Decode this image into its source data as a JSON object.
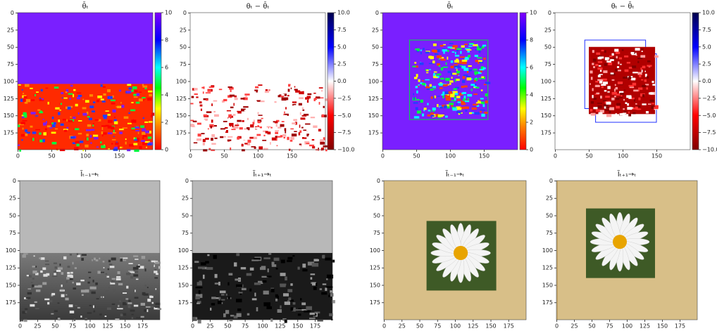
{
  "chart_data": [
    {
      "type": "image",
      "title": "θ̄ₜ",
      "xlim": [
        -0.5,
        199.5
      ],
      "ylim": [
        199.5,
        -0.5
      ],
      "xticks": [
        0,
        50,
        100,
        150
      ],
      "yticks": [
        0,
        25,
        50,
        75,
        100,
        125,
        150,
        175
      ],
      "colorbar": {
        "cmap": "hsv",
        "clim": [
          0,
          10
        ],
        "ticks": [
          0,
          2,
          4,
          6,
          8,
          10
        ]
      }
    },
    {
      "type": "image",
      "title": "θₜ − θ̄ₜ",
      "xlim": [
        -0.5,
        199.5
      ],
      "ylim": [
        199.5,
        -0.5
      ],
      "xticks": [
        0,
        50,
        100,
        150
      ],
      "yticks": [
        0,
        25,
        50,
        75,
        100,
        125,
        150,
        175
      ],
      "colorbar": {
        "cmap": "seismic_r",
        "clim": [
          -10,
          10
        ],
        "ticks": [
          {
            "value": 10,
            "label": "10.0"
          },
          {
            "value": 7.5,
            "label": "7.5"
          },
          {
            "value": 5,
            "label": "5.0"
          },
          {
            "value": 2.5,
            "label": "2.5"
          },
          {
            "value": 0,
            "label": "0.0"
          },
          {
            "value": -2.5,
            "label": "−2.5"
          },
          {
            "value": -5,
            "label": "−5.0"
          },
          {
            "value": -7.5,
            "label": "−7.5"
          },
          {
            "value": -10,
            "label": "−10.0"
          }
        ]
      }
    },
    {
      "type": "image",
      "title": "θ̄ₜ",
      "xlim": [
        -0.5,
        199.5
      ],
      "ylim": [
        199.5,
        -0.5
      ],
      "xticks": [
        0,
        50,
        100,
        150
      ],
      "yticks": [
        0,
        25,
        50,
        75,
        100,
        125,
        150,
        175
      ],
      "colorbar": {
        "cmap": "hsv",
        "clim": [
          0,
          10
        ],
        "ticks": [
          0,
          2,
          4,
          6,
          8,
          10
        ]
      }
    },
    {
      "type": "image",
      "title": "θₜ − θ̄ₜ",
      "xlim": [
        -0.5,
        199.5
      ],
      "ylim": [
        199.5,
        -0.5
      ],
      "xticks": [
        0,
        50,
        100,
        150
      ],
      "yticks": [
        0,
        25,
        50,
        75,
        100,
        125,
        150,
        175
      ],
      "colorbar": {
        "cmap": "seismic_r",
        "clim": [
          -10,
          10
        ],
        "ticks": [
          {
            "value": 10,
            "label": "10.0"
          },
          {
            "value": 7.5,
            "label": "7.5"
          },
          {
            "value": 5,
            "label": "5.0"
          },
          {
            "value": 2.5,
            "label": "2.5"
          },
          {
            "value": 0,
            "label": "0.0"
          },
          {
            "value": -2.5,
            "label": "−2.5"
          },
          {
            "value": -5,
            "label": "−5.0"
          },
          {
            "value": -7.5,
            "label": "−7.5"
          },
          {
            "value": -10,
            "label": "−10.0"
          }
        ]
      }
    },
    {
      "type": "image",
      "title": "Ĩₜ₋₁→ₜ",
      "xlim": [
        -0.5,
        199.5
      ],
      "ylim": [
        199.5,
        -0.5
      ],
      "xticks": [
        0,
        25,
        50,
        75,
        100,
        125,
        150,
        175
      ],
      "yticks": [
        0,
        25,
        50,
        75,
        100,
        125,
        150,
        175
      ]
    },
    {
      "type": "image",
      "title": "Ĩₜ₊₁→ₜ",
      "xlim": [
        -0.5,
        199.5
      ],
      "ylim": [
        199.5,
        -0.5
      ],
      "xticks": [
        0,
        25,
        50,
        75,
        100,
        125,
        150,
        175
      ],
      "yticks": [
        0,
        25,
        50,
        75,
        100,
        125,
        150,
        175
      ]
    },
    {
      "type": "image",
      "title": "Ĩₜ₋₁→ₜ",
      "xlim": [
        -0.5,
        199.5
      ],
      "ylim": [
        199.5,
        -0.5
      ],
      "xticks": [
        0,
        25,
        50,
        75,
        100,
        125,
        150,
        175
      ],
      "yticks": [
        0,
        25,
        50,
        75,
        100,
        125,
        150,
        175
      ]
    },
    {
      "type": "image",
      "title": "Ĩₜ₊₁→ₜ",
      "xlim": [
        -0.5,
        199.5
      ],
      "ylim": [
        199.5,
        -0.5
      ],
      "xticks": [
        0,
        25,
        50,
        75,
        100,
        125,
        150,
        175
      ],
      "yticks": [
        0,
        25,
        50,
        75,
        100,
        125,
        150,
        175
      ]
    }
  ]
}
